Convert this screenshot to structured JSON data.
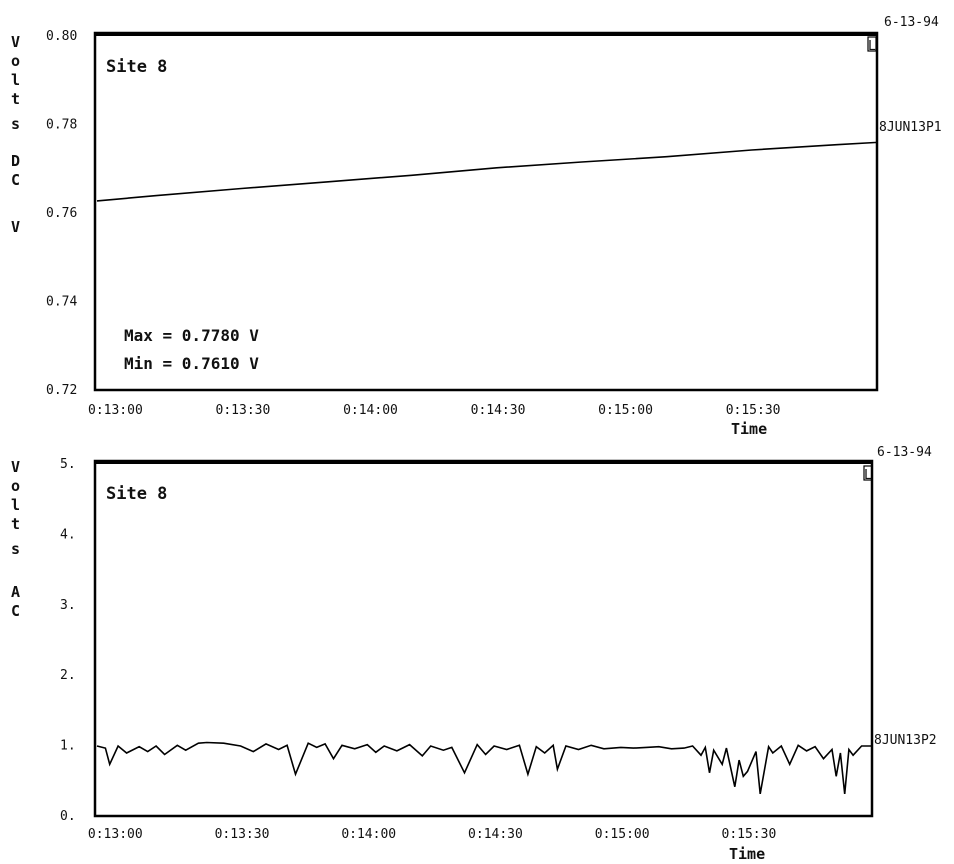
{
  "chart_data": [
    {
      "type": "line",
      "title": "Site 8",
      "date": "6-13-94",
      "ylabel": [
        "V",
        "o",
        "l",
        "t",
        "s",
        "",
        "D",
        "C",
        "",
        "V"
      ],
      "xlabel": "Time",
      "yticks": [
        "0.80",
        "0.78",
        "0.76",
        "0.74",
        "0.72"
      ],
      "ytick_values": [
        0.8,
        0.78,
        0.76,
        0.74,
        0.72
      ],
      "ylim": [
        0.72,
        0.8
      ],
      "xticks": [
        "0:13:00",
        "0:13:30",
        "0:14:00",
        "0:14:30",
        "0:15:00",
        "0:15:30"
      ],
      "xtick_values": [
        "0:13:00",
        "0:13:30",
        "0:14:00",
        "0:14:30",
        "0:15:00",
        "0:15:30"
      ],
      "xlim": [
        "0:12:56",
        "0:15:59"
      ],
      "marker": "L",
      "series": [
        {
          "name": "8JUN13P1",
          "x": [
            "0:12:56",
            "0:13:10",
            "0:13:30",
            "0:13:50",
            "0:14:10",
            "0:14:30",
            "0:14:50",
            "0:15:10",
            "0:15:30",
            "0:15:50",
            "0:15:59"
          ],
          "values": [
            0.7625,
            0.7637,
            0.7653,
            0.7668,
            0.7683,
            0.77,
            0.7713,
            0.7725,
            0.774,
            0.7752,
            0.7757
          ]
        }
      ],
      "annotations": [
        "Max = 0.7780 V",
        "Min = 0.7610 V"
      ]
    },
    {
      "type": "line",
      "title": "Site 8",
      "date": "6-13-94",
      "ylabel": [
        "V",
        "o",
        "l",
        "t",
        "s",
        "",
        "A",
        "C"
      ],
      "xlabel": "Time",
      "yticks": [
        "5.",
        "4.",
        "3.",
        "2.",
        "1.",
        "0."
      ],
      "ytick_values": [
        5,
        4,
        3,
        2,
        1,
        0
      ],
      "ylim": [
        0,
        5
      ],
      "xticks": [
        "0:13:00",
        "0:13:30",
        "0:14:00",
        "0:14:30",
        "0:15:00",
        "0:15:30"
      ],
      "xtick_values": [
        "0:13:00",
        "0:13:30",
        "0:14:00",
        "0:14:30",
        "0:15:00",
        "0:15:30"
      ],
      "xlim": [
        "0:12:56",
        "0:15:59"
      ],
      "marker": "L",
      "series": [
        {
          "name": "8JUN13P2",
          "x": [
            "0:12:56",
            "0:12:58",
            "0:12:59",
            "0:13:01",
            "0:13:03",
            "0:13:06",
            "0:13:08",
            "0:13:10",
            "0:13:12",
            "0:13:15",
            "0:13:17",
            "0:13:20",
            "0:13:22",
            "0:13:26",
            "0:13:30",
            "0:13:33",
            "0:13:36",
            "0:13:39",
            "0:13:41",
            "0:13:43",
            "0:13:46",
            "0:13:48",
            "0:13:50",
            "0:13:52",
            "0:13:54",
            "0:13:57",
            "0:14:00",
            "0:14:02",
            "0:14:04",
            "0:14:07",
            "0:14:10",
            "0:14:13",
            "0:14:15",
            "0:14:18",
            "0:14:20",
            "0:14:23",
            "0:14:26",
            "0:14:28",
            "0:14:30",
            "0:14:33",
            "0:14:36",
            "0:14:38",
            "0:14:40",
            "0:14:42",
            "0:14:44",
            "0:14:45",
            "0:14:47",
            "0:14:50",
            "0:14:53",
            "0:14:56",
            "0:15:00",
            "0:15:03",
            "0:15:06",
            "0:15:09",
            "0:15:12",
            "0:15:15",
            "0:15:17",
            "0:15:19",
            "0:15:20",
            "0:15:21",
            "0:15:22",
            "0:15:24",
            "0:15:25",
            "0:15:27",
            "0:15:28",
            "0:15:29",
            "0:15:30",
            "0:15:32",
            "0:15:33",
            "0:15:35",
            "0:15:36",
            "0:15:38",
            "0:15:40",
            "0:15:42",
            "0:15:44",
            "0:15:46",
            "0:15:48",
            "0:15:50",
            "0:15:51",
            "0:15:52",
            "0:15:53",
            "0:15:54",
            "0:15:55",
            "0:15:57",
            "0:15:59"
          ],
          "values": [
            0.98,
            0.95,
            0.72,
            0.98,
            0.88,
            0.97,
            0.9,
            0.98,
            0.86,
            0.99,
            0.92,
            1.02,
            1.03,
            1.02,
            0.98,
            0.9,
            1.01,
            0.93,
            0.99,
            0.58,
            1.02,
            0.96,
            1.01,
            0.8,
            0.99,
            0.94,
            1.0,
            0.89,
            0.98,
            0.91,
            1.0,
            0.84,
            0.98,
            0.92,
            0.96,
            0.6,
            1.0,
            0.86,
            0.98,
            0.93,
            0.99,
            0.58,
            0.97,
            0.88,
            0.99,
            0.65,
            0.98,
            0.93,
            0.99,
            0.94,
            0.96,
            0.95,
            0.96,
            0.97,
            0.94,
            0.95,
            0.98,
            0.85,
            0.96,
            0.6,
            0.92,
            0.72,
            0.95,
            0.4,
            0.78,
            0.55,
            0.62,
            0.9,
            0.3,
            0.97,
            0.88,
            0.98,
            0.72,
            0.99,
            0.91,
            0.97,
            0.8,
            0.93,
            0.55,
            0.88,
            0.3,
            0.93,
            0.85,
            0.98,
            0.98
          ]
        }
      ],
      "annotations": []
    }
  ]
}
